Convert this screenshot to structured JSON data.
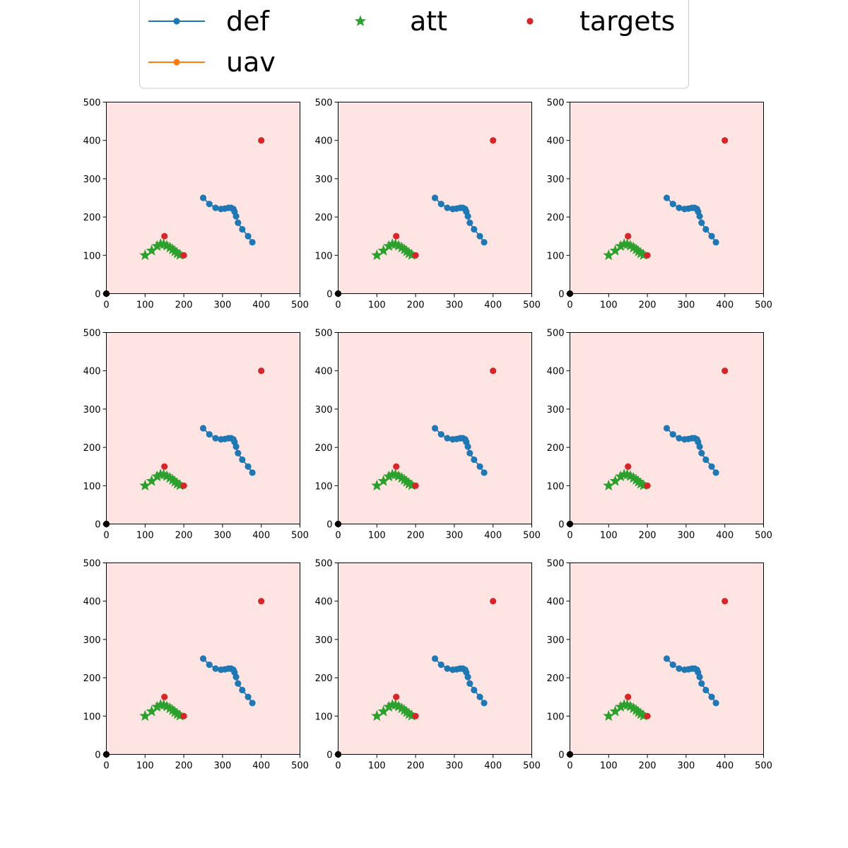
{
  "chart_data": {
    "type": "scatter",
    "layout": "3x3 grid of identical subplots",
    "legend": {
      "placement": "top-center",
      "columns": 3,
      "entries": [
        {
          "label": "def",
          "style": "line-with-dots"
        },
        {
          "label": "att",
          "style": "star-marker"
        },
        {
          "label": "targets",
          "style": "dot-marker"
        },
        {
          "label": "uav",
          "style": "line-with-dots"
        }
      ]
    },
    "xlim": [
      0,
      500
    ],
    "ylim": [
      0,
      500
    ],
    "xticks": [
      "0",
      "100",
      "200",
      "300",
      "400",
      "500"
    ],
    "yticks": [
      "0",
      "100",
      "200",
      "300",
      "400",
      "500"
    ],
    "grid": false,
    "axes_background": "#ffe4e4",
    "series": [
      {
        "name": "def",
        "color": "#1f77b4",
        "marker": "circle",
        "line": true,
        "points": [
          [
            250,
            250
          ],
          [
            266,
            234
          ],
          [
            282,
            224
          ],
          [
            296,
            221
          ],
          [
            306,
            222
          ],
          [
            315,
            224
          ],
          [
            322,
            224
          ],
          [
            328,
            221
          ],
          [
            331,
            214
          ],
          [
            335,
            202
          ],
          [
            340,
            185
          ],
          [
            351,
            168
          ],
          [
            366,
            150
          ],
          [
            377,
            134
          ]
        ]
      },
      {
        "name": "uav",
        "color": "#ff7f0e",
        "marker": "circle",
        "line": true,
        "points": [
          [
            0,
            0
          ]
        ]
      },
      {
        "name": "att",
        "color": "#2ca02c",
        "marker": "star",
        "line": false,
        "points": [
          [
            100,
            100
          ],
          [
            117,
            112
          ],
          [
            131,
            124
          ],
          [
            140,
            129
          ],
          [
            148,
            129
          ],
          [
            156,
            125
          ],
          [
            164,
            120
          ],
          [
            171,
            115
          ],
          [
            177,
            110
          ],
          [
            183,
            105
          ],
          [
            190,
            101
          ]
        ]
      },
      {
        "name": "targets",
        "color": "#d62728",
        "marker": "circle",
        "line": false,
        "points": [
          [
            150,
            150
          ],
          [
            200,
            100
          ],
          [
            400,
            400
          ]
        ]
      },
      {
        "name": "",
        "color": "#000000",
        "marker": "circle",
        "line": false,
        "points": [
          [
            0,
            0
          ]
        ]
      }
    ],
    "subplots": 9
  }
}
